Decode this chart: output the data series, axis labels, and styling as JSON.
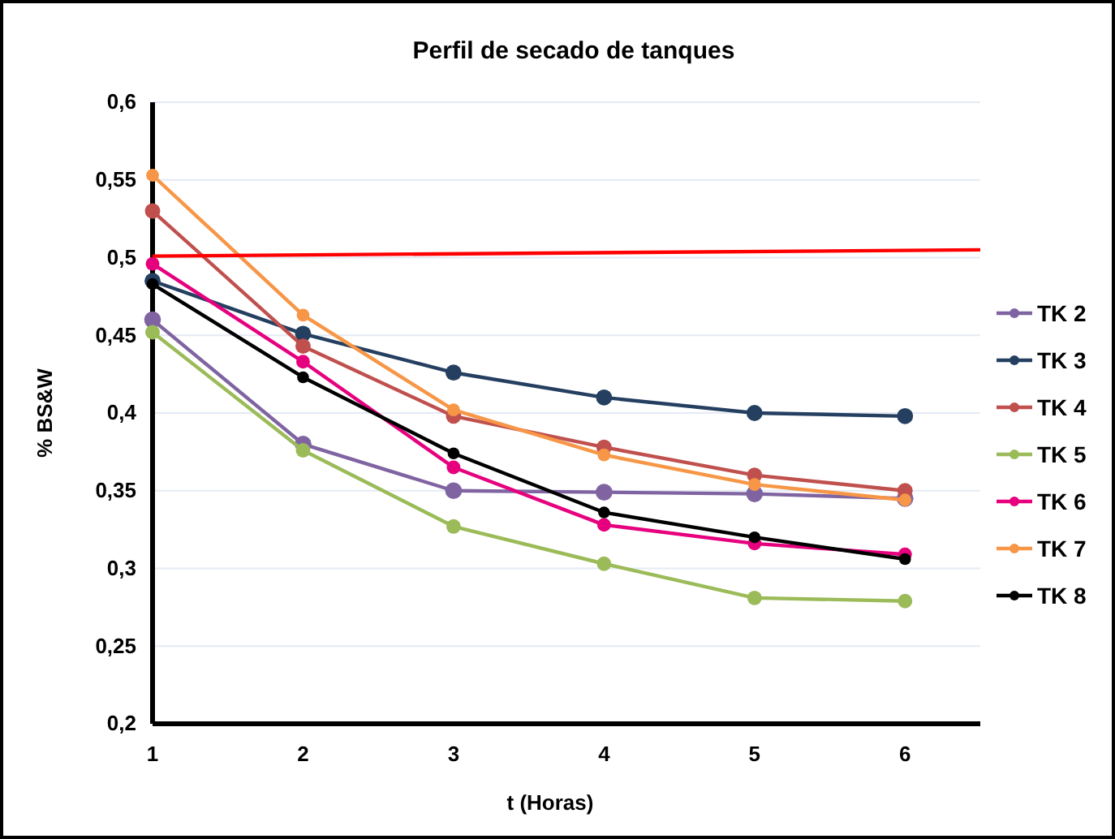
{
  "chart_data": {
    "type": "line",
    "title": "Perfil de secado de tanques",
    "xlabel": "t  (Horas)",
    "ylabel": "% BS&W",
    "x": [
      1,
      2,
      3,
      4,
      5,
      6
    ],
    "xlim": [
      1,
      6.5
    ],
    "xticks": [
      1,
      2,
      3,
      4,
      5,
      6
    ],
    "ylim": [
      0.2,
      0.6
    ],
    "yticks": [
      {
        "value": 0.2,
        "label": "0,2"
      },
      {
        "value": 0.25,
        "label": "0,25"
      },
      {
        "value": 0.3,
        "label": "0,3"
      },
      {
        "value": 0.35,
        "label": "0,35"
      },
      {
        "value": 0.4,
        "label": "0,4"
      },
      {
        "value": 0.45,
        "label": "0,45"
      },
      {
        "value": 0.5,
        "label": "0,5"
      },
      {
        "value": 0.55,
        "label": "0,55"
      },
      {
        "value": 0.6,
        "label": "0,6"
      }
    ],
    "grid": "y",
    "legend": "right",
    "marker": "circle",
    "series": [
      {
        "name": "TK 2",
        "color": "#8064a2",
        "values": [
          0.46,
          0.38,
          0.35,
          0.349,
          0.348,
          0.345
        ]
      },
      {
        "name": "TK 3",
        "color": "#243f60",
        "values": [
          0.485,
          0.451,
          0.426,
          0.41,
          0.4,
          0.398
        ]
      },
      {
        "name": "TK 4",
        "color": "#c0504d",
        "values": [
          0.53,
          0.443,
          0.398,
          0.378,
          0.36,
          0.35
        ]
      },
      {
        "name": "TK 5",
        "color": "#9bbb59",
        "values": [
          0.452,
          0.376,
          0.327,
          0.303,
          0.281,
          0.279
        ]
      },
      {
        "name": "TK 6",
        "color": "#e6007e",
        "values": [
          0.496,
          0.433,
          0.365,
          0.328,
          0.316,
          0.309
        ]
      },
      {
        "name": "TK 7",
        "color": "#f79646",
        "values": [
          0.553,
          0.463,
          0.402,
          0.373,
          0.354,
          0.344
        ]
      },
      {
        "name": "TK 8",
        "color": "#000000",
        "values": [
          0.483,
          0.423,
          0.374,
          0.336,
          0.32,
          0.306
        ]
      },
      {
        "color": "#ff0000",
        "marker": "none",
        "x": [
          1,
          6.5
        ],
        "values": [
          0.501,
          0.505
        ]
      }
    ]
  }
}
